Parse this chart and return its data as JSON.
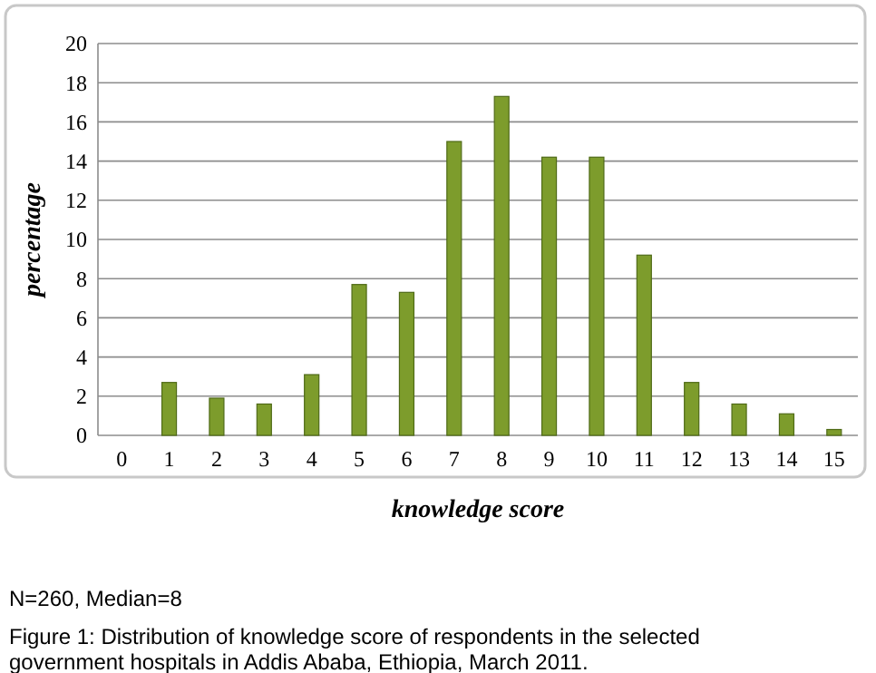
{
  "chart_data": {
    "type": "bar",
    "xlabel": "knowledge score",
    "ylabel": "percentage",
    "categories": [
      "0",
      "1",
      "2",
      "3",
      "4",
      "5",
      "6",
      "7",
      "8",
      "9",
      "10",
      "11",
      "12",
      "13",
      "14",
      "15"
    ],
    "values": [
      0,
      2.7,
      1.9,
      1.6,
      3.1,
      7.7,
      7.3,
      15,
      17.3,
      14.2,
      14.2,
      9.2,
      2.7,
      1.6,
      1.1,
      0.3
    ],
    "color": "#7d9c2c",
    "ylim": [
      0,
      20
    ],
    "yticks": [
      0,
      2,
      4,
      6,
      8,
      10,
      12,
      14,
      16,
      18,
      20
    ],
    "grid": "y",
    "annotations": [
      "N=260, Median=8",
      "Figure 1: Distribution of knowledge score of respondents in the selected government hospitals in Addis Ababa, Ethiopia, March 2011."
    ]
  }
}
